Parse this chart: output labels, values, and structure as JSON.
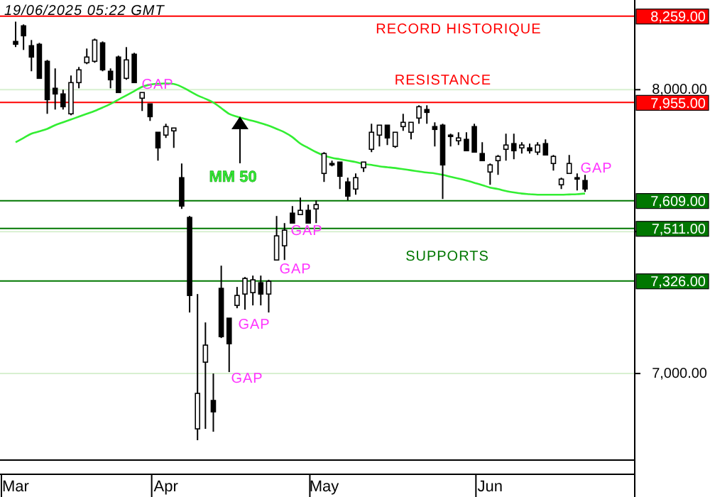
{
  "chart_data": {
    "type": "candlestick",
    "categories": [
      "Mar",
      null,
      null,
      null,
      null,
      null,
      null,
      null,
      null,
      null,
      null,
      null,
      null,
      null,
      null,
      null,
      null,
      null,
      null,
      "Apr",
      null,
      null,
      null,
      null,
      null,
      null,
      null,
      null,
      null,
      null,
      null,
      null,
      null,
      null,
      null,
      null,
      null,
      null,
      null,
      "May",
      null,
      null,
      null,
      null,
      null,
      null,
      null,
      null,
      null,
      null,
      null,
      null,
      null,
      null,
      null,
      null,
      null,
      null,
      null,
      null,
      "Jun",
      null,
      null,
      null,
      null,
      null,
      null,
      null,
      null,
      null,
      null,
      null,
      null
    ],
    "ohlc": [
      [
        8170,
        8240,
        8150,
        8160
      ],
      [
        8225,
        8230,
        8140,
        8190
      ],
      [
        8155,
        8175,
        8065,
        8115
      ],
      [
        8160,
        8165,
        8040,
        8040
      ],
      [
        8100,
        8105,
        7915,
        7965
      ],
      [
        8005,
        8075,
        7930,
        7985
      ],
      [
        7985,
        8000,
        7930,
        7940
      ],
      [
        7915,
        8050,
        7910,
        8025
      ],
      [
        8025,
        8080,
        8005,
        8070
      ],
      [
        8095,
        8145,
        8090,
        8115
      ],
      [
        8100,
        8180,
        8095,
        8175
      ],
      [
        8165,
        8170,
        8065,
        8070
      ],
      [
        8065,
        8075,
        8005,
        8035
      ],
      [
        8115,
        8120,
        7990,
        7990
      ],
      [
        8040,
        8150,
        8035,
        8105
      ],
      [
        8125,
        8130,
        8025,
        8025
      ],
      [
        7970,
        7990,
        7925,
        7990
      ],
      [
        7950,
        7950,
        7890,
        7905
      ],
      [
        7850,
        7850,
        7750,
        7795
      ],
      [
        7840,
        7880,
        7830,
        7870
      ],
      [
        7855,
        7865,
        7795,
        7865
      ],
      [
        7690,
        7740,
        7580,
        7590
      ],
      [
        7550,
        7555,
        7215,
        7275
      ],
      [
        6805,
        7280,
        6765,
        6930
      ],
      [
        7040,
        7180,
        6805,
        7100
      ],
      [
        6905,
        7000,
        6795,
        6865
      ],
      [
        7300,
        7380,
        7125,
        7130
      ],
      [
        7195,
        7195,
        7005,
        7105
      ],
      [
        7240,
        7305,
        7230,
        7275
      ],
      [
        7280,
        7340,
        7225,
        7335
      ],
      [
        7285,
        7345,
        7240,
        7330
      ],
      [
        7320,
        7345,
        7240,
        7280
      ],
      [
        7280,
        7330,
        7215,
        7325
      ],
      [
        7400,
        7555,
        7400,
        7485
      ],
      [
        7450,
        7530,
        7400,
        7505
      ],
      [
        7565,
        7590,
        7530,
        7530
      ],
      [
        7560,
        7620,
        7560,
        7575
      ],
      [
        7575,
        7595,
        7530,
        7530
      ],
      [
        7580,
        7610,
        7530,
        7595
      ],
      [
        7705,
        7780,
        7675,
        7775
      ],
      [
        7740,
        7750,
        7730,
        7735
      ],
      [
        7745,
        7745,
        7650,
        7695
      ],
      [
        7675,
        7690,
        7610,
        7625
      ],
      [
        7650,
        7705,
        7630,
        7690
      ],
      [
        7725,
        7745,
        7710,
        7745
      ],
      [
        7790,
        7880,
        7780,
        7850
      ],
      [
        7840,
        7875,
        7800,
        7875
      ],
      [
        7875,
        7875,
        7805,
        7830
      ],
      [
        7800,
        7850,
        7795,
        7850
      ],
      [
        7870,
        7915,
        7855,
        7885
      ],
      [
        7850,
        7885,
        7825,
        7885
      ],
      [
        7900,
        7945,
        7880,
        7940
      ],
      [
        7930,
        7945,
        7880,
        7920
      ],
      [
        7870,
        7885,
        7800,
        7860
      ],
      [
        7875,
        7880,
        7615,
        7735
      ],
      [
        7840,
        7845,
        7800,
        7835
      ],
      [
        7820,
        7850,
        7805,
        7830
      ],
      [
        7825,
        7850,
        7785,
        7785
      ],
      [
        7870,
        7880,
        7780,
        7780
      ],
      [
        7775,
        7815,
        7750,
        7750
      ],
      [
        7710,
        7740,
        7665,
        7735
      ],
      [
        7750,
        7770,
        7700,
        7765
      ],
      [
        7790,
        7845,
        7750,
        7805
      ],
      [
        7810,
        7845,
        7755,
        7785
      ],
      [
        7795,
        7815,
        7775,
        7805
      ],
      [
        7795,
        7810,
        7775,
        7785
      ],
      [
        7780,
        7815,
        7770,
        7805
      ],
      [
        7810,
        7825,
        7770,
        7770
      ],
      [
        7740,
        7770,
        7715,
        7765
      ],
      [
        7665,
        7690,
        7650,
        7685
      ],
      [
        7705,
        7770,
        7705,
        7740
      ],
      [
        7690,
        7705,
        7645,
        7685
      ],
      [
        7680,
        7700,
        7640,
        7650
      ]
    ],
    "series": [
      {
        "type": "line",
        "name": "MM 50",
        "color": "#33ee33",
        "values": [
          7815,
          7830,
          7845,
          7853,
          7862,
          7875,
          7885,
          7895,
          7905,
          7915,
          7925,
          7937,
          7950,
          7965,
          7980,
          7995,
          8010,
          8018,
          8021,
          8022,
          8020,
          8010,
          7995,
          7980,
          7968,
          7955,
          7935,
          7915,
          7905,
          7897,
          7890,
          7882,
          7873,
          7862,
          7850,
          7833,
          7810,
          7795,
          7780,
          7768,
          7760,
          7755,
          7750,
          7745,
          7738,
          7735,
          7730,
          7727,
          7724,
          7720,
          7716,
          7712,
          7708,
          7705,
          7700,
          7693,
          7687,
          7680,
          7672,
          7664,
          7655,
          7650,
          7643,
          7638,
          7634,
          7632,
          7630,
          7630,
          7630,
          7630,
          7631,
          7632,
          7634
        ]
      }
    ],
    "ylim": [
      6695,
      8316
    ],
    "yticks": [
      {
        "value": 7000,
        "label": "7,000.00"
      },
      {
        "value": 7500,
        "label": null
      },
      {
        "value": 8000,
        "label": "8,000.00"
      }
    ],
    "grid": "y",
    "ref_lines": [
      {
        "axis": "y",
        "value": 8259,
        "label": "8,259.00",
        "color": "#ff0000"
      },
      {
        "axis": "y",
        "value": 7955,
        "label": "7,955.00",
        "color": "#ff0000"
      },
      {
        "axis": "y",
        "value": 7609,
        "label": "7,609.00",
        "color": "#007700"
      },
      {
        "axis": "y",
        "value": 7511,
        "label": "7,511.00",
        "color": "#007700"
      },
      {
        "axis": "y",
        "value": 7326,
        "label": "7,326.00",
        "color": "#007700"
      }
    ],
    "annotations": [
      "19/06/2025 05:22 GMT",
      "RECORD HISTORIQUE",
      "RESISTANCE",
      "SUPPORTS",
      "GAP",
      "GAP",
      "GAP",
      "GAP",
      "GAP",
      "GAP"
    ]
  }
}
